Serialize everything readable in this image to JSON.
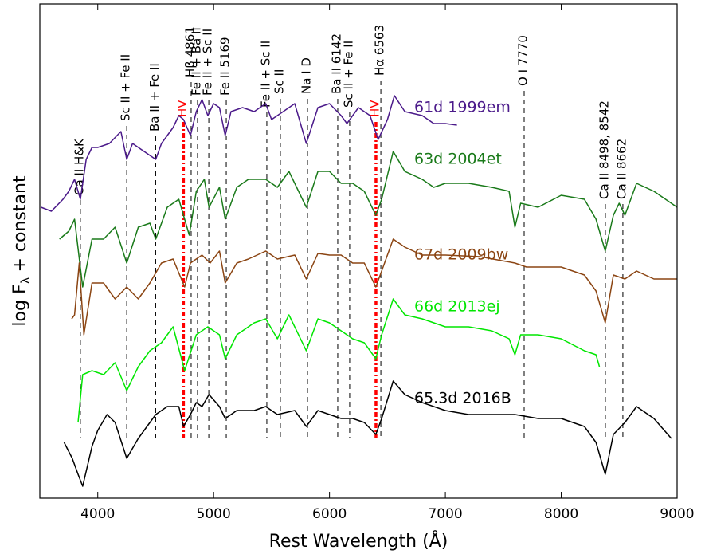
{
  "chart_data": {
    "type": "line",
    "x_label": "Rest Wavelength (Å)",
    "y_label": {
      "text": "log F",
      "subscript": "λ",
      "suffix": "+ constant"
    },
    "xlim": [
      3500,
      9000
    ],
    "xticks": [
      4000,
      5000,
      6000,
      7000,
      8000,
      9000
    ],
    "ylim": [
      0,
      62
    ],
    "series": [
      {
        "name": "61d 1999em",
        "color": "#4b1a8a",
        "x": [
          3510,
          3600,
          3700,
          3750,
          3800,
          3850,
          3900,
          3950,
          4000,
          4100,
          4200,
          4250,
          4300,
          4400,
          4500,
          4550,
          4650,
          4700,
          4740,
          4800,
          4850,
          4900,
          4950,
          5000,
          5050,
          5100,
          5150,
          5250,
          5350,
          5450,
          5500,
          5600,
          5700,
          5800,
          5900,
          6000,
          6100,
          6150,
          6250,
          6350,
          6420,
          6500,
          6560,
          6650,
          6800,
          6900,
          7000,
          7100
        ],
        "values": [
          36.5,
          36,
          37.5,
          38.5,
          40,
          37.5,
          42.5,
          44,
          44,
          44.5,
          46,
          42.5,
          44.5,
          43.5,
          42.5,
          44.5,
          46.5,
          48,
          47.5,
          45.5,
          48.5,
          50,
          48,
          49.5,
          49,
          45.5,
          48.5,
          49,
          48.5,
          49.5,
          47.5,
          48.5,
          49.5,
          44.5,
          49,
          49.5,
          48,
          47,
          49,
          48,
          45,
          47.5,
          50.5,
          48.5,
          48,
          47,
          47,
          46.8
        ]
      },
      {
        "name": "63d 2004et",
        "color": "#1a7a1a",
        "x": [
          3670,
          3750,
          3800,
          3870,
          3950,
          4050,
          4150,
          4250,
          4350,
          4450,
          4500,
          4600,
          4700,
          4790,
          4850,
          4920,
          4960,
          5050,
          5100,
          5200,
          5300,
          5450,
          5550,
          5650,
          5800,
          5900,
          6000,
          6100,
          6200,
          6300,
          6400,
          6450,
          6550,
          6650,
          6800,
          6900,
          7000,
          7200,
          7400,
          7550,
          7600,
          7650,
          7800,
          8000,
          8200,
          8300,
          8380,
          8450,
          8500,
          8550,
          8650,
          8800,
          9000
        ],
        "values": [
          32.5,
          33.5,
          35,
          26.5,
          32.5,
          32.5,
          34,
          29.5,
          34,
          34.5,
          32.5,
          36.5,
          37.5,
          33,
          38.5,
          40,
          36.5,
          39,
          35,
          39,
          40,
          40,
          39,
          41,
          36.5,
          41,
          41,
          39.5,
          39.5,
          38.5,
          35.5,
          37.5,
          43.5,
          41,
          40,
          39,
          39.5,
          39.5,
          39,
          38.5,
          34,
          37,
          36.5,
          38,
          37.5,
          35,
          31,
          35.5,
          37,
          35.5,
          39.5,
          38.5,
          36.5
        ]
      },
      {
        "name": "67d 2009bw",
        "color": "#8b4513",
        "x": [
          3775,
          3800,
          3840,
          3880,
          3950,
          4050,
          4150,
          4250,
          4350,
          4450,
          4550,
          4650,
          4750,
          4800,
          4900,
          4970,
          5050,
          5100,
          5200,
          5300,
          5450,
          5550,
          5700,
          5800,
          5900,
          6000,
          6100,
          6200,
          6300,
          6400,
          6450,
          6550,
          6650,
          6800,
          7000,
          7300,
          7600,
          7700,
          8000,
          8200,
          8300,
          8380,
          8450,
          8550,
          8650,
          8800,
          9000
        ],
        "values": [
          22.5,
          23,
          29.5,
          20.5,
          27,
          27,
          25,
          26.5,
          25,
          27,
          29.5,
          30,
          26.5,
          29.5,
          30.5,
          29.5,
          31,
          27,
          29.5,
          30,
          31,
          30,
          30.5,
          27.5,
          30.7,
          30.5,
          30.5,
          29.5,
          29.5,
          26.5,
          28.5,
          32.5,
          31.5,
          30.5,
          30.5,
          30.3,
          29.5,
          29,
          29,
          28,
          26,
          22,
          28,
          27.5,
          28.5,
          27.5,
          27.5
        ]
      },
      {
        "name": "66d 2013ej",
        "color": "#00e600",
        "x": [
          3830,
          3870,
          3950,
          4050,
          4150,
          4250,
          4350,
          4450,
          4550,
          4650,
          4750,
          4850,
          4950,
          5050,
          5100,
          5200,
          5350,
          5450,
          5550,
          5650,
          5800,
          5900,
          6000,
          6100,
          6200,
          6300,
          6400,
          6450,
          6550,
          6650,
          6800,
          7000,
          7200,
          7400,
          7550,
          7600,
          7650,
          7800,
          8000,
          8200,
          8300,
          8330
        ],
        "values": [
          9.5,
          15.5,
          16,
          15.5,
          17,
          13.5,
          16.5,
          18.5,
          19.5,
          21.5,
          16,
          20.5,
          21.5,
          20.5,
          17.5,
          20.5,
          22,
          22.5,
          20,
          23,
          18.5,
          22.5,
          22,
          21,
          20,
          19.5,
          17.5,
          20.5,
          25,
          23,
          22.5,
          21.5,
          21.5,
          21,
          20,
          18,
          20.5,
          20.5,
          20,
          18.5,
          18,
          16.5
        ]
      },
      {
        "name": "65.3d 2016B",
        "color": "#000000",
        "x": [
          3710,
          3780,
          3830,
          3870,
          3950,
          4000,
          4080,
          4150,
          4250,
          4350,
          4500,
          4600,
          4700,
          4740,
          4800,
          4850,
          4900,
          4960,
          5050,
          5100,
          5200,
          5350,
          5450,
          5550,
          5700,
          5800,
          5900,
          6000,
          6100,
          6200,
          6300,
          6400,
          6450,
          6550,
          6650,
          6800,
          7000,
          7200,
          7400,
          7600,
          7800,
          8000,
          8200,
          8300,
          8380,
          8450,
          8550,
          8650,
          8800,
          8950
        ],
        "values": [
          7,
          5,
          3,
          1.5,
          6.5,
          8.5,
          10.5,
          9.5,
          5,
          7.5,
          10.5,
          11.5,
          11.5,
          9,
          10.5,
          12,
          11.5,
          13,
          11.5,
          10,
          11,
          11,
          11.5,
          10.5,
          11,
          9,
          11,
          10.5,
          10,
          10,
          9.5,
          8,
          10,
          14.7,
          13,
          12,
          11,
          10.5,
          10.5,
          10.5,
          10,
          10,
          9,
          7,
          3,
          8,
          9.5,
          11.5,
          10,
          7.5
        ]
      }
    ],
    "annotations": [
      {
        "label": "Ca II H&K",
        "x": 3850,
        "color": "#000000"
      },
      {
        "label": "Sc II + Fe II",
        "x": 4250,
        "color": "#000000"
      },
      {
        "label": "Ba II + Fe II",
        "x": 4500,
        "color": "#000000"
      },
      {
        "label": "HV",
        "x": 4740,
        "color": "#ff0000"
      },
      {
        "label": "Hβ 4861",
        "x": 4806,
        "color": "#000000"
      },
      {
        "label": "Fe II + Ba II",
        "x": 4861,
        "color": "#000000"
      },
      {
        "label": "Fe II + Sc II",
        "x": 4958,
        "color": "#000000"
      },
      {
        "label": "Fe II 5169",
        "x": 5109,
        "color": "#000000"
      },
      {
        "label": "Fe II + Sc II",
        "x": 5459,
        "color": "#000000"
      },
      {
        "label": "Sc II",
        "x": 5576,
        "color": "#000000"
      },
      {
        "label": "Na I D",
        "x": 5810,
        "color": "#000000"
      },
      {
        "label": "Ba II 6142",
        "x": 6071,
        "color": "#000000"
      },
      {
        "label": "Sc II + Fe II",
        "x": 6174,
        "color": "#000000"
      },
      {
        "label": "HV",
        "x": 6401,
        "color": "#ff0000"
      },
      {
        "label": "Hα 6563",
        "x": 6443,
        "color": "#000000"
      },
      {
        "label": "O I 7770",
        "x": 7680,
        "color": "#000000"
      },
      {
        "label": "Ca II 8498, 8542",
        "x": 8381,
        "color": "#000000"
      },
      {
        "label": "Ca II 8662",
        "x": 8532,
        "color": "#000000"
      }
    ]
  }
}
